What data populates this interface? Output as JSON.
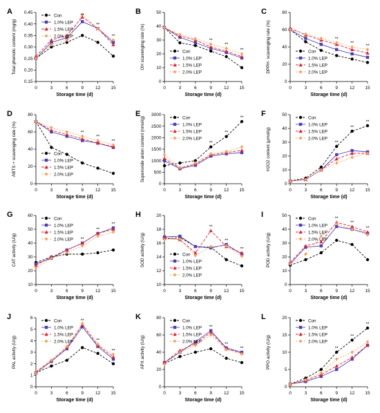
{
  "figure": {
    "x_label": "Storage time (d)"
  },
  "colors": {
    "Con": "#000000",
    "1.0% LEP": "#4b3fb0",
    "1.5% LEP": "#d6243b",
    "2.0% LEP": "#f2a060"
  },
  "chart_data": [
    {
      "panel": "A",
      "type": "line",
      "ylabel": "Total phenolic content (mg/g)",
      "x": [
        0,
        3,
        6,
        9,
        12,
        15
      ],
      "ylim": [
        0.15,
        0.45
      ],
      "yticks": [
        "0.15",
        "0.20",
        "0.25",
        "0.30",
        "0.35",
        "0.40",
        "0.45"
      ],
      "legend": "top-left",
      "series": [
        {
          "name": "Con",
          "values": [
            0.25,
            0.3,
            0.32,
            0.35,
            0.32,
            0.26
          ]
        },
        {
          "name": "1.0% LEP",
          "values": [
            0.25,
            0.32,
            0.34,
            0.41,
            0.38,
            0.32
          ]
        },
        {
          "name": "1.5% LEP",
          "values": [
            0.26,
            0.33,
            0.35,
            0.43,
            0.38,
            0.31
          ]
        },
        {
          "name": "2.0% LEP",
          "values": [
            0.25,
            0.31,
            0.33,
            0.44,
            0.38,
            0.33
          ]
        }
      ],
      "annotations": [
        {
          "x": 9,
          "text": "**"
        },
        {
          "x": 12,
          "text": "**"
        },
        {
          "x": 15,
          "text": "**"
        }
      ]
    },
    {
      "panel": "B",
      "type": "line",
      "ylabel": "OH scavenging rate (%)",
      "x": [
        0,
        3,
        6,
        9,
        12,
        15
      ],
      "ylim": [
        0,
        50
      ],
      "yticks": [
        "0",
        "10",
        "20",
        "30",
        "40",
        "50"
      ],
      "legend": "bottom-left",
      "series": [
        {
          "name": "Con",
          "values": [
            39,
            28,
            26,
            22,
            18,
            10
          ]
        },
        {
          "name": "1.0% LEP",
          "values": [
            39,
            32,
            28,
            24,
            21,
            17
          ]
        },
        {
          "name": "1.5% LEP",
          "values": [
            39,
            33,
            30,
            25,
            22,
            18
          ]
        },
        {
          "name": "2.0% LEP",
          "values": [
            39,
            34,
            31,
            27,
            24,
            20
          ]
        }
      ],
      "annotations": [
        {
          "x": 9,
          "text": "**"
        },
        {
          "x": 12,
          "text": "**"
        },
        {
          "x": 15,
          "text": "**"
        }
      ]
    },
    {
      "panel": "C",
      "type": "line",
      "ylabel": "DPPH· scavenging rate (%)",
      "x": [
        0,
        3,
        6,
        9,
        12,
        15
      ],
      "ylim": [
        0,
        80
      ],
      "yticks": [
        "0",
        "20",
        "40",
        "60",
        "80"
      ],
      "legend": "bottom-left",
      "series": [
        {
          "name": "Con",
          "values": [
            60,
            46,
            36,
            30,
            26,
            22
          ]
        },
        {
          "name": "1.0% LEP",
          "values": [
            60,
            50,
            43,
            37,
            32,
            28
          ]
        },
        {
          "name": "1.5% LEP",
          "values": [
            62,
            54,
            48,
            43,
            37,
            33
          ]
        },
        {
          "name": "2.0% LEP",
          "values": [
            60,
            55,
            50,
            45,
            40,
            37
          ]
        }
      ],
      "annotations": [
        {
          "x": 9,
          "text": "**"
        },
        {
          "x": 12,
          "text": "**"
        },
        {
          "x": 15,
          "text": "**"
        }
      ]
    },
    {
      "panel": "D",
      "type": "line",
      "ylabel": "ABTS·+ scavenging rate (%)",
      "x": [
        0,
        3,
        6,
        9,
        12,
        15
      ],
      "ylim": [
        0,
        80
      ],
      "yticks": [
        "0",
        "20",
        "40",
        "60",
        "80"
      ],
      "legend": "bottom-left",
      "series": [
        {
          "name": "Con",
          "values": [
            72,
            42,
            34,
            24,
            18,
            12
          ]
        },
        {
          "name": "1.0% LEP",
          "values": [
            72,
            60,
            55,
            50,
            47,
            42
          ]
        },
        {
          "name": "1.5% LEP",
          "values": [
            72,
            62,
            57,
            52,
            47,
            43
          ]
        },
        {
          "name": "2.0% LEP",
          "values": [
            72,
            65,
            60,
            55,
            50,
            45
          ]
        }
      ],
      "annotations": [
        {
          "x": 9,
          "text": "**"
        },
        {
          "x": 12,
          "text": "**"
        },
        {
          "x": 15,
          "text": "**"
        }
      ]
    },
    {
      "panel": "E",
      "type": "line",
      "ylabel": "Superoxide anion content (nmol/g)",
      "x": [
        0,
        3,
        6,
        9,
        12,
        15
      ],
      "ylim": [
        0,
        3000
      ],
      "yticks": [
        "0",
        "500",
        "1000",
        "1500",
        "2000",
        "2500",
        "3000"
      ],
      "legend": "top-left",
      "series": [
        {
          "name": "Con",
          "values": [
            780,
            900,
            1000,
            1600,
            2050,
            2700
          ]
        },
        {
          "name": "1.0% LEP",
          "values": [
            1000,
            650,
            800,
            1200,
            1300,
            1350
          ]
        },
        {
          "name": "1.5% LEP",
          "values": [
            1100,
            680,
            850,
            1250,
            1350,
            1450
          ]
        },
        {
          "name": "2.0% LEP",
          "values": [
            1250,
            700,
            900,
            1300,
            1400,
            1600
          ]
        }
      ],
      "annotations": [
        {
          "x": 9,
          "text": "**"
        },
        {
          "x": 12,
          "text": "**"
        },
        {
          "x": 15,
          "text": "**"
        }
      ]
    },
    {
      "panel": "F",
      "type": "line",
      "ylabel": "H2O2 content (μmol/g)",
      "x": [
        0,
        3,
        6,
        9,
        12,
        15
      ],
      "ylim": [
        0,
        50
      ],
      "yticks": [
        "0",
        "10",
        "20",
        "30",
        "40",
        "50"
      ],
      "legend": "top-left",
      "series": [
        {
          "name": "Con",
          "values": [
            2,
            4,
            12,
            27,
            38,
            42
          ]
        },
        {
          "name": "1.0% LEP",
          "values": [
            2,
            3,
            10,
            21,
            24,
            23
          ]
        },
        {
          "name": "1.5% LEP",
          "values": [
            2,
            3,
            10,
            18,
            22,
            22
          ]
        },
        {
          "name": "2.0% LEP",
          "values": [
            2,
            3,
            10,
            15,
            19,
            22
          ]
        }
      ],
      "annotations": [
        {
          "x": 9,
          "text": "**"
        },
        {
          "x": 12,
          "text": "**"
        },
        {
          "x": 15,
          "text": "**"
        }
      ]
    },
    {
      "panel": "G",
      "type": "line",
      "ylabel": "CAT activity (U/g)",
      "x": [
        0,
        3,
        6,
        9,
        12,
        15
      ],
      "ylim": [
        10,
        60
      ],
      "yticks": [
        "10",
        "20",
        "30",
        "40",
        "50",
        "60"
      ],
      "legend": "top-left",
      "series": [
        {
          "name": "Con",
          "values": [
            26,
            30,
            32,
            32,
            33,
            35
          ]
        },
        {
          "name": "1.0% LEP",
          "values": [
            25,
            29,
            35,
            40,
            47,
            51
          ]
        },
        {
          "name": "1.5% LEP",
          "values": [
            24,
            30,
            35,
            40,
            47,
            50
          ]
        },
        {
          "name": "2.0% LEP",
          "values": [
            22,
            29,
            33,
            38,
            45,
            48
          ]
        }
      ],
      "annotations": [
        {
          "x": 9,
          "text": "**"
        },
        {
          "x": 12,
          "text": "**"
        },
        {
          "x": 15,
          "text": "**"
        }
      ]
    },
    {
      "panel": "H",
      "type": "line",
      "ylabel": "SOD activity (U/g)",
      "x": [
        0,
        3,
        6,
        9,
        12,
        15
      ],
      "ylim": [
        10,
        20
      ],
      "yticks": [
        "10",
        "12",
        "14",
        "16",
        "18",
        "20"
      ],
      "legend": "bottom-left",
      "series": [
        {
          "name": "Con",
          "values": [
            16.6,
            16.8,
            15.5,
            15.4,
            13.6,
            12.7
          ]
        },
        {
          "name": "1.0% LEP",
          "values": [
            16.9,
            17.0,
            15.5,
            15.3,
            15.8,
            14.4
          ]
        },
        {
          "name": "1.5% LEP",
          "values": [
            16.8,
            16.5,
            14.6,
            17.8,
            15.5,
            14.6
          ]
        },
        {
          "name": "2.0% LEP",
          "values": [
            16.5,
            16.6,
            14.2,
            15.5,
            15.6,
            14.1
          ]
        }
      ],
      "annotations": [
        {
          "x": 9,
          "text": "**"
        },
        {
          "x": 12,
          "text": "**"
        },
        {
          "x": 15,
          "text": "**"
        }
      ]
    },
    {
      "panel": "I",
      "type": "line",
      "ylabel": "POD activity (U/g)",
      "x": [
        0,
        3,
        6,
        9,
        12,
        15
      ],
      "ylim": [
        0,
        50
      ],
      "yticks": [
        "0",
        "10",
        "20",
        "30",
        "40",
        "50"
      ],
      "legend": "top-left",
      "series": [
        {
          "name": "Con",
          "values": [
            14,
            18,
            23,
            32,
            29,
            18
          ]
        },
        {
          "name": "1.0% LEP",
          "values": [
            15,
            27,
            28,
            42,
            40,
            37
          ]
        },
        {
          "name": "1.5% LEP",
          "values": [
            16,
            28,
            31,
            45,
            42,
            38
          ]
        },
        {
          "name": "2.0% LEP",
          "values": [
            15,
            22,
            35,
            44,
            40,
            36
          ]
        }
      ],
      "annotations": [
        {
          "x": 9,
          "text": "**"
        },
        {
          "x": 12,
          "text": "**"
        },
        {
          "x": 15,
          "text": "**"
        }
      ]
    },
    {
      "panel": "J",
      "type": "line",
      "ylabel": "PAL activity (U/g)",
      "x": [
        0,
        3,
        6,
        9,
        12,
        15
      ],
      "ylim": [
        0,
        6
      ],
      "yticks": [
        "0",
        "1",
        "2",
        "3",
        "4",
        "5",
        "6"
      ],
      "legend": "top-left",
      "series": [
        {
          "name": "Con",
          "values": [
            1.2,
            1.8,
            2.3,
            3.4,
            2.9,
            2.0
          ]
        },
        {
          "name": "1.0% LEP",
          "values": [
            1.2,
            2.2,
            3.3,
            5.2,
            3.5,
            2.4
          ]
        },
        {
          "name": "1.5% LEP",
          "values": [
            1.3,
            2.3,
            3.4,
            5.4,
            3.6,
            2.6
          ]
        },
        {
          "name": "2.0% LEP",
          "values": [
            1.2,
            2.3,
            3.5,
            5.5,
            3.7,
            2.8
          ]
        }
      ],
      "annotations": [
        {
          "x": 9,
          "text": "**"
        },
        {
          "x": 12,
          "text": "**"
        },
        {
          "x": 15,
          "text": "**"
        }
      ]
    },
    {
      "panel": "K",
      "type": "line",
      "ylabel": "APX activity (U/g)",
      "x": [
        0,
        3,
        6,
        9,
        12,
        15
      ],
      "ylim": [
        0,
        80
      ],
      "yticks": [
        "0",
        "20",
        "40",
        "60",
        "80"
      ],
      "legend": "top-left",
      "series": [
        {
          "name": "Con",
          "values": [
            27,
            35,
            40,
            44,
            33,
            28
          ]
        },
        {
          "name": "1.0% LEP",
          "values": [
            28,
            40,
            52,
            65,
            45,
            40
          ]
        },
        {
          "name": "1.5% LEP",
          "values": [
            28,
            42,
            50,
            63,
            44,
            39
          ]
        },
        {
          "name": "2.0% LEP",
          "values": [
            26,
            40,
            48,
            60,
            43,
            38
          ]
        }
      ],
      "annotations": [
        {
          "x": 9,
          "text": "**"
        },
        {
          "x": 12,
          "text": "**"
        },
        {
          "x": 15,
          "text": "**"
        }
      ]
    },
    {
      "panel": "L",
      "type": "line",
      "ylabel": "PPO activity (U/g)",
      "x": [
        0,
        3,
        6,
        9,
        12,
        15
      ],
      "ylim": [
        0,
        20
      ],
      "yticks": [
        "0",
        "5",
        "10",
        "15",
        "20"
      ],
      "legend": "top-left",
      "series": [
        {
          "name": "Con",
          "values": [
            0.8,
            2.5,
            5.0,
            10.0,
            13.5,
            17.0
          ]
        },
        {
          "name": "1.0% LEP",
          "values": [
            0.8,
            1.5,
            3.0,
            5.0,
            8.0,
            12.0
          ]
        },
        {
          "name": "1.5% LEP",
          "values": [
            0.8,
            1.8,
            3.5,
            6.0,
            8.5,
            12.0
          ]
        },
        {
          "name": "2.0% LEP",
          "values": [
            0.8,
            2.0,
            4.0,
            8.0,
            10.0,
            13.0
          ]
        }
      ],
      "annotations": [
        {
          "x": 9,
          "text": "**"
        },
        {
          "x": 12,
          "text": "**"
        },
        {
          "x": 15,
          "text": "**"
        }
      ]
    }
  ]
}
